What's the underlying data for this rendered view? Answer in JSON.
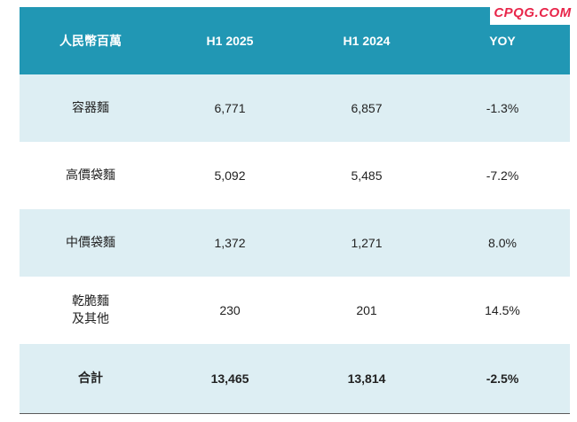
{
  "watermark": "CPQG.COM",
  "header": {
    "col1": "人民幣百萬",
    "col2": "H1 2025",
    "col3": "H1 2024",
    "col4": "YOY"
  },
  "rows": [
    {
      "category": "容器麵",
      "category2": "",
      "h1_2025": "6,771",
      "h1_2024": "6,857",
      "yoy": "-1.3%"
    },
    {
      "category": "高價袋麵",
      "category2": "",
      "h1_2025": "5,092",
      "h1_2024": "5,485",
      "yoy": "-7.2%"
    },
    {
      "category": "中價袋麵",
      "category2": "",
      "h1_2025": "1,372",
      "h1_2024": "1,271",
      "yoy": "8.0%"
    },
    {
      "category": "乾脆麵",
      "category2": "及其他",
      "h1_2025": "230",
      "h1_2024": "201",
      "yoy": "14.5%"
    }
  ],
  "total": {
    "category": "合計",
    "h1_2025": "13,465",
    "h1_2024": "13,814",
    "yoy": "-2.5%"
  }
}
